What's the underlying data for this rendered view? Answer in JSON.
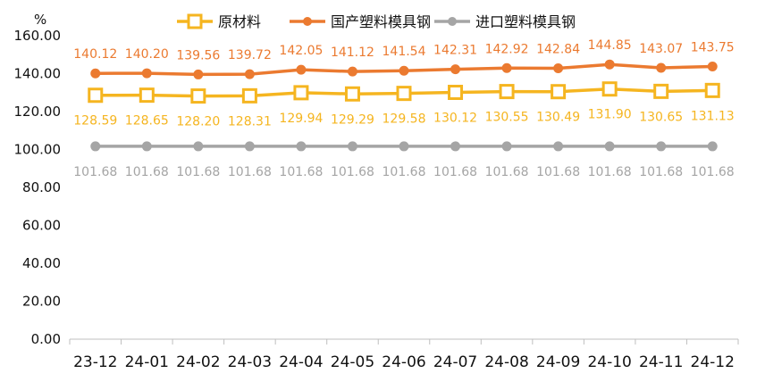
{
  "chart_data": {
    "type": "line",
    "unit_label": "%",
    "categories": [
      "23-12",
      "24-01",
      "24-02",
      "24-03",
      "24-04",
      "24-05",
      "24-06",
      "24-07",
      "24-08",
      "24-09",
      "24-10",
      "24-11",
      "24-12"
    ],
    "ylim": [
      0,
      160
    ],
    "yticks": [
      "0.00",
      "20.00",
      "40.00",
      "60.00",
      "80.00",
      "100.00",
      "120.00",
      "140.00",
      "160.00"
    ],
    "grid": false,
    "legend_position": "top",
    "series": [
      {
        "name": "原材料",
        "color": "#F5B520",
        "marker": "square-hollow",
        "values": [
          128.59,
          128.65,
          128.2,
          128.31,
          129.94,
          129.29,
          129.58,
          130.12,
          130.55,
          130.49,
          131.9,
          130.65,
          131.13
        ],
        "labels": [
          "128.59",
          "128.65",
          "128.20",
          "128.31",
          "129.94",
          "129.29",
          "129.58",
          "130.12",
          "130.55",
          "130.49",
          "131.90",
          "130.65",
          "131.13"
        ],
        "label_position": "below"
      },
      {
        "name": "国产塑料模具钢",
        "color": "#EB7A30",
        "marker": "circle",
        "values": [
          140.12,
          140.2,
          139.56,
          139.72,
          142.05,
          141.12,
          141.54,
          142.31,
          142.92,
          142.84,
          144.85,
          143.07,
          143.75
        ],
        "labels": [
          "140.12",
          "140.20",
          "139.56",
          "139.72",
          "142.05",
          "141.12",
          "141.54",
          "142.31",
          "142.92",
          "142.84",
          "144.85",
          "143.07",
          "143.75"
        ],
        "label_position": "above"
      },
      {
        "name": "进口塑料模具钢",
        "color": "#A5A5A5",
        "marker": "circle",
        "values": [
          101.68,
          101.68,
          101.68,
          101.68,
          101.68,
          101.68,
          101.68,
          101.68,
          101.68,
          101.68,
          101.68,
          101.68,
          101.68
        ],
        "labels": [
          "101.68",
          "101.68",
          "101.68",
          "101.68",
          "101.68",
          "101.68",
          "101.68",
          "101.68",
          "101.68",
          "101.68",
          "101.68",
          "101.68",
          "101.68"
        ],
        "label_position": "below"
      }
    ]
  }
}
